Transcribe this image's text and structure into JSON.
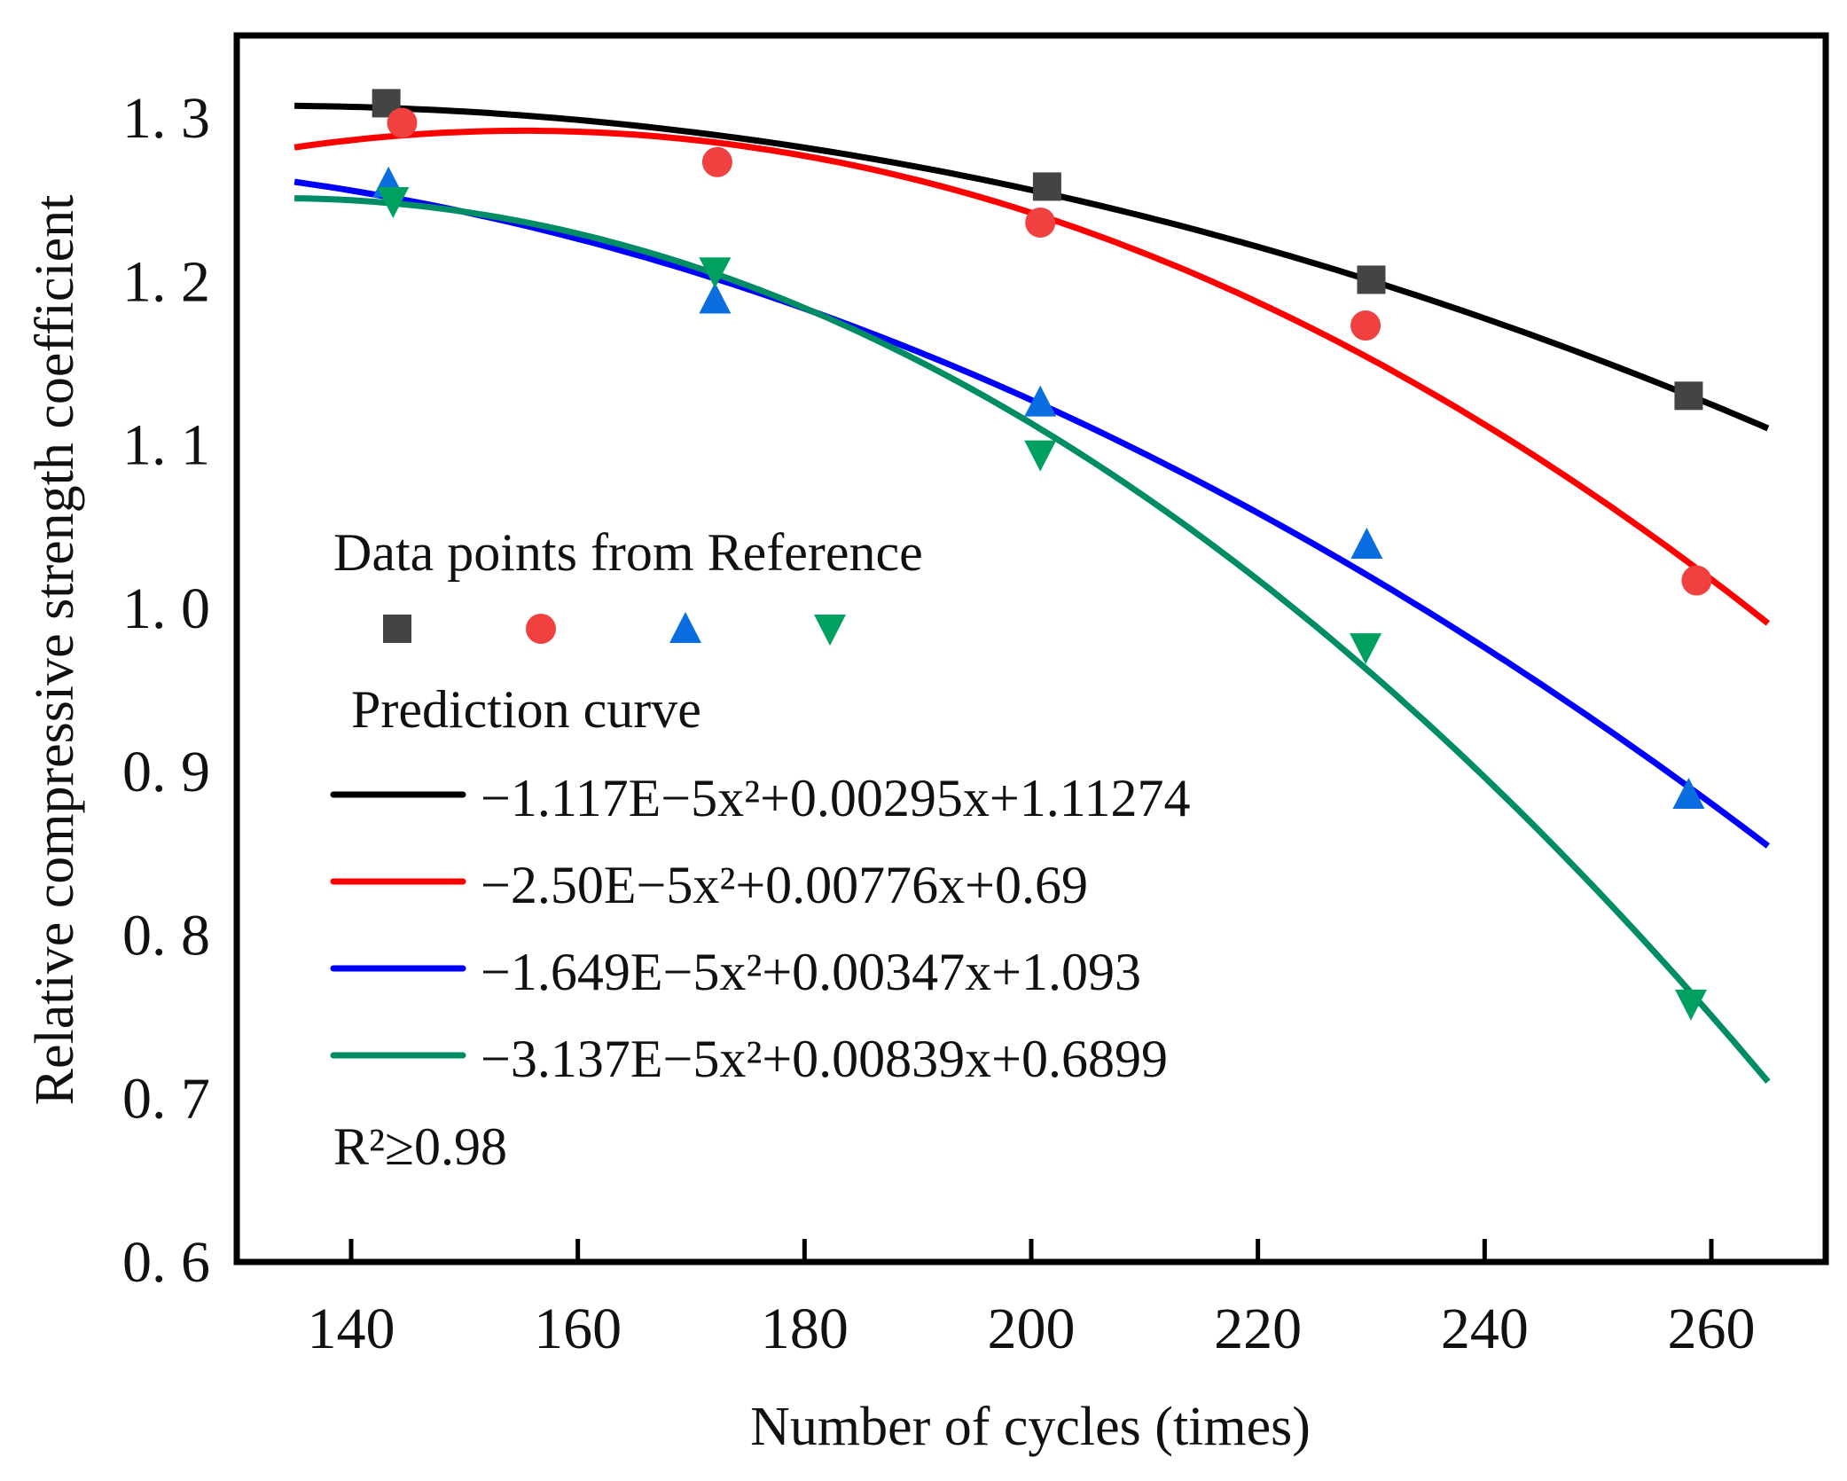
{
  "chart_data": {
    "type": "scatter",
    "title": "",
    "xlabel": "Number of cycles (times)",
    "ylabel": "Relative compressive strength coefficient",
    "xlim": [
      130,
      268
    ],
    "ylim": [
      0.6,
      1.35
    ],
    "xticks": [
      140,
      160,
      180,
      200,
      220,
      240,
      260
    ],
    "xtick_labels": [
      "140",
      "160",
      "180",
      "200",
      "220",
      "240",
      "260"
    ],
    "yticks": [
      0.6,
      0.7,
      0.8,
      0.9,
      1.0,
      1.1,
      1.2,
      1.3
    ],
    "ytick_labels": [
      "0. 6",
      "0. 7",
      "0. 8",
      "0. 9",
      "1. 0",
      "1. 1",
      "1. 2",
      "1. 3"
    ],
    "grid": false,
    "legend_placement": "center-left",
    "legend": {
      "points_title": "Data points from Reference",
      "curves_title": "Prediction curve",
      "r2": "R²≥0.98"
    },
    "series": [
      {
        "name": "series-1",
        "color": "#000000",
        "marker_color": "#444444",
        "marker": "square",
        "equation": "−1.117E−5x²+0.00295x+1.11274",
        "coef": [
          -1.117e-05,
          0.00295,
          1.11274
        ],
        "x": [
          143.1,
          201.4,
          230.0,
          258.0
        ],
        "y": [
          1.309,
          1.258,
          1.201,
          1.13
        ]
      },
      {
        "name": "series-2",
        "color": "#ff0000",
        "marker_color": "#f04040",
        "marker": "circle",
        "equation": "−2.50E−5x²+0.00776x+0.69",
        "coef": [
          -2.5e-05,
          0.00776,
          0.69
        ],
        "x": [
          144.5,
          172.3,
          200.8,
          229.5,
          258.7
        ],
        "y": [
          1.297,
          1.273,
          1.236,
          1.173,
          1.017
        ]
      },
      {
        "name": "series-3",
        "color": "#0000ff",
        "marker_color": "#0a6ee0",
        "marker": "triangle-up",
        "equation": "−1.649E−5x²+0.00347x+1.093",
        "coef": [
          -1.649e-05,
          0.00347,
          1.093
        ],
        "x": [
          143.3,
          172.1,
          200.8,
          229.6,
          258.0
        ],
        "y": [
          1.26,
          1.189,
          1.126,
          1.039,
          0.886
        ]
      },
      {
        "name": "series-4",
        "color": "#008c64",
        "marker_color": "#00a060",
        "marker": "triangle-down",
        "equation": "−3.137E−5x²+0.00839x+0.6899",
        "coef": [
          -3.137e-05,
          0.00839,
          0.6899
        ],
        "x": [
          143.7,
          172.1,
          200.8,
          229.5,
          258.2
        ],
        "y": [
          1.249,
          1.206,
          1.094,
          0.976,
          0.758
        ]
      }
    ],
    "curve_x_range": [
      135,
      265
    ]
  }
}
